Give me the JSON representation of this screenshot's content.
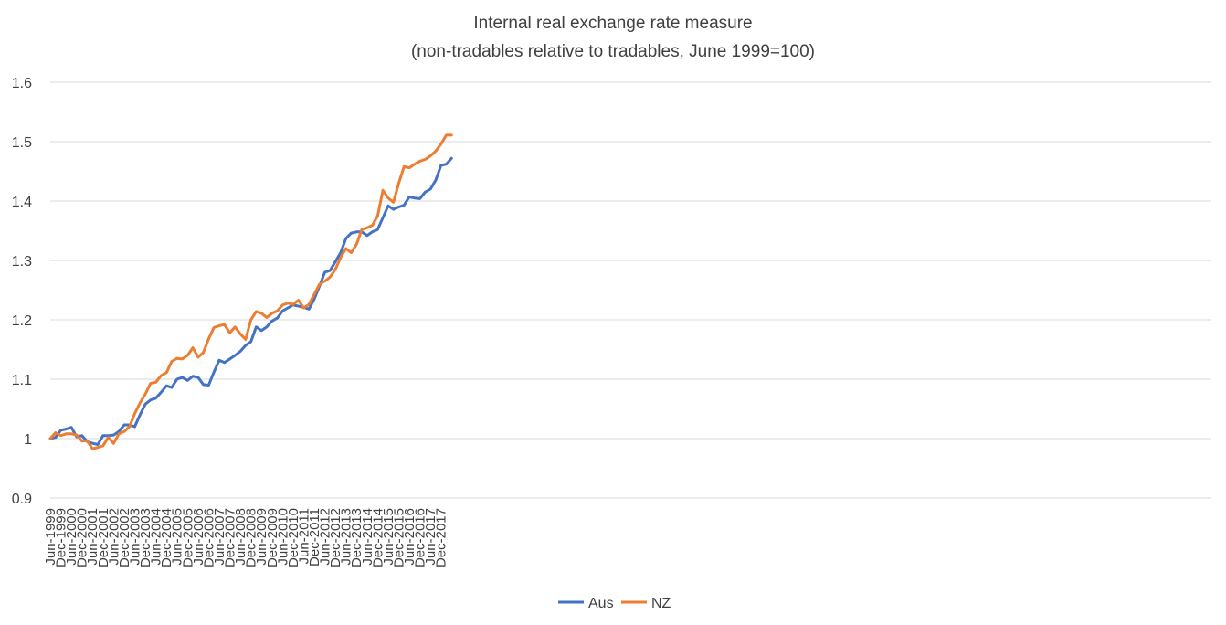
{
  "chart_data": {
    "type": "line",
    "title": "Internal real exchange rate measure",
    "subtitle": "(non-tradables relative to tradables, June 1999=100)",
    "xlabel": "",
    "ylabel": "",
    "ylim": [
      0.9,
      1.6
    ],
    "yticks": [
      "0.9",
      "1",
      "1.1",
      "1.2",
      "1.3",
      "1.4",
      "1.5",
      "1.6"
    ],
    "ytick_values": [
      0.9,
      1.0,
      1.1,
      1.2,
      1.3,
      1.4,
      1.5,
      1.6
    ],
    "grid": true,
    "legend_position": "bottom",
    "x_tick_labels": [
      "Jun-1999",
      "Dec-1999",
      "Jun-2000",
      "Dec-2000",
      "Jun-2001",
      "Dec-2001",
      "Jun-2002",
      "Dec-2002",
      "Jun-2003",
      "Dec-2003",
      "Jun-2004",
      "Dec-2004",
      "Jun-2005",
      "Dec-2005",
      "Jun-2006",
      "Dec-2006",
      "Jun-2007",
      "Dec-2007",
      "Jun-2008",
      "Dec-2008",
      "Jun-2009",
      "Dec-2009",
      "Jun-2010",
      "Dec-2010",
      "Jun-2011",
      "Dec-2011",
      "Jun-2012",
      "Dec-2012",
      "Jun-2013",
      "Dec-2013",
      "Jun-2014",
      "Dec-2014",
      "Jun-2015",
      "Dec-2015",
      "Jun-2016",
      "Dec-2016",
      "Jun-2017",
      "Dec-2017"
    ],
    "x_count": 77,
    "series": [
      {
        "name": "Aus",
        "color": "#4472c4",
        "values": [
          1.0,
          1.002,
          1.014,
          1.016,
          1.019,
          1.003,
          1.005,
          0.995,
          0.992,
          0.99,
          1.005,
          1.005,
          1.006,
          1.012,
          1.023,
          1.023,
          1.02,
          1.04,
          1.058,
          1.065,
          1.068,
          1.078,
          1.089,
          1.086,
          1.1,
          1.103,
          1.098,
          1.105,
          1.103,
          1.091,
          1.09,
          1.112,
          1.132,
          1.128,
          1.134,
          1.14,
          1.147,
          1.157,
          1.163,
          1.188,
          1.182,
          1.188,
          1.198,
          1.203,
          1.215,
          1.22,
          1.225,
          1.223,
          1.221,
          1.218,
          1.235,
          1.257,
          1.28,
          1.283,
          1.298,
          1.313,
          1.337,
          1.346,
          1.348,
          1.348,
          1.342,
          1.348,
          1.352,
          1.372,
          1.392,
          1.386,
          1.39,
          1.393,
          1.407,
          1.405,
          1.404,
          1.415,
          1.42,
          1.435,
          1.46,
          1.462,
          1.472
        ]
      },
      {
        "name": "NZ",
        "color": "#ed7d31",
        "values": [
          1.0,
          1.01,
          1.005,
          1.008,
          1.008,
          1.006,
          0.996,
          0.996,
          0.983,
          0.985,
          0.988,
          1.002,
          0.992,
          1.008,
          1.012,
          1.02,
          1.042,
          1.06,
          1.075,
          1.093,
          1.095,
          1.106,
          1.111,
          1.13,
          1.135,
          1.134,
          1.14,
          1.153,
          1.137,
          1.145,
          1.168,
          1.187,
          1.19,
          1.192,
          1.178,
          1.188,
          1.176,
          1.167,
          1.2,
          1.214,
          1.211,
          1.204,
          1.211,
          1.215,
          1.225,
          1.228,
          1.226,
          1.233,
          1.22,
          1.226,
          1.243,
          1.26,
          1.265,
          1.272,
          1.285,
          1.305,
          1.32,
          1.313,
          1.327,
          1.352,
          1.355,
          1.359,
          1.375,
          1.418,
          1.405,
          1.398,
          1.43,
          1.458,
          1.456,
          1.462,
          1.467,
          1.47,
          1.476,
          1.484,
          1.496,
          1.511,
          1.511
        ]
      }
    ]
  }
}
